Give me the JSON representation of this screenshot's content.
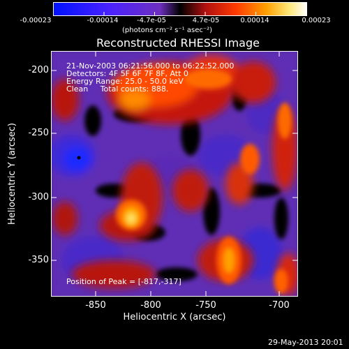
{
  "colorbar": {
    "ticks": [
      "-0.00023",
      "-0.00014",
      "-4.7e-05",
      "4.7e-05",
      "0.00014",
      "0.00023"
    ],
    "units": "(photons cm⁻² s⁻¹ asec⁻²)"
  },
  "plot": {
    "title": "Reconstructed RHESSI Image",
    "xlabel": "Heliocentric X (arcsec)",
    "ylabel": "Heliocentric Y (arcsec)",
    "xticks": [
      "-850",
      "-800",
      "-750",
      "-700"
    ],
    "yticks": [
      "-200",
      "-250",
      "-300",
      "-350"
    ],
    "info": {
      "line1": "21-Nov-2003 06:21:56.000 to 06:22:52.000",
      "line2": "Detectors: 4F 5F 6F 7F 8F, Att 0",
      "line3": "Energy Range: 25.0 - 50.0 keV",
      "line4": "Clean     Total counts: 888."
    },
    "peak_text": "Position of Peak = [-817,-317]"
  },
  "footer": {
    "date": "29-May-2013 20:01"
  },
  "palette": {
    "low": "#1a1aff",
    "mid_low": "#6a2fb8",
    "zero": "#000000",
    "mid_high": "#e03a10",
    "high": "#ffffff"
  }
}
